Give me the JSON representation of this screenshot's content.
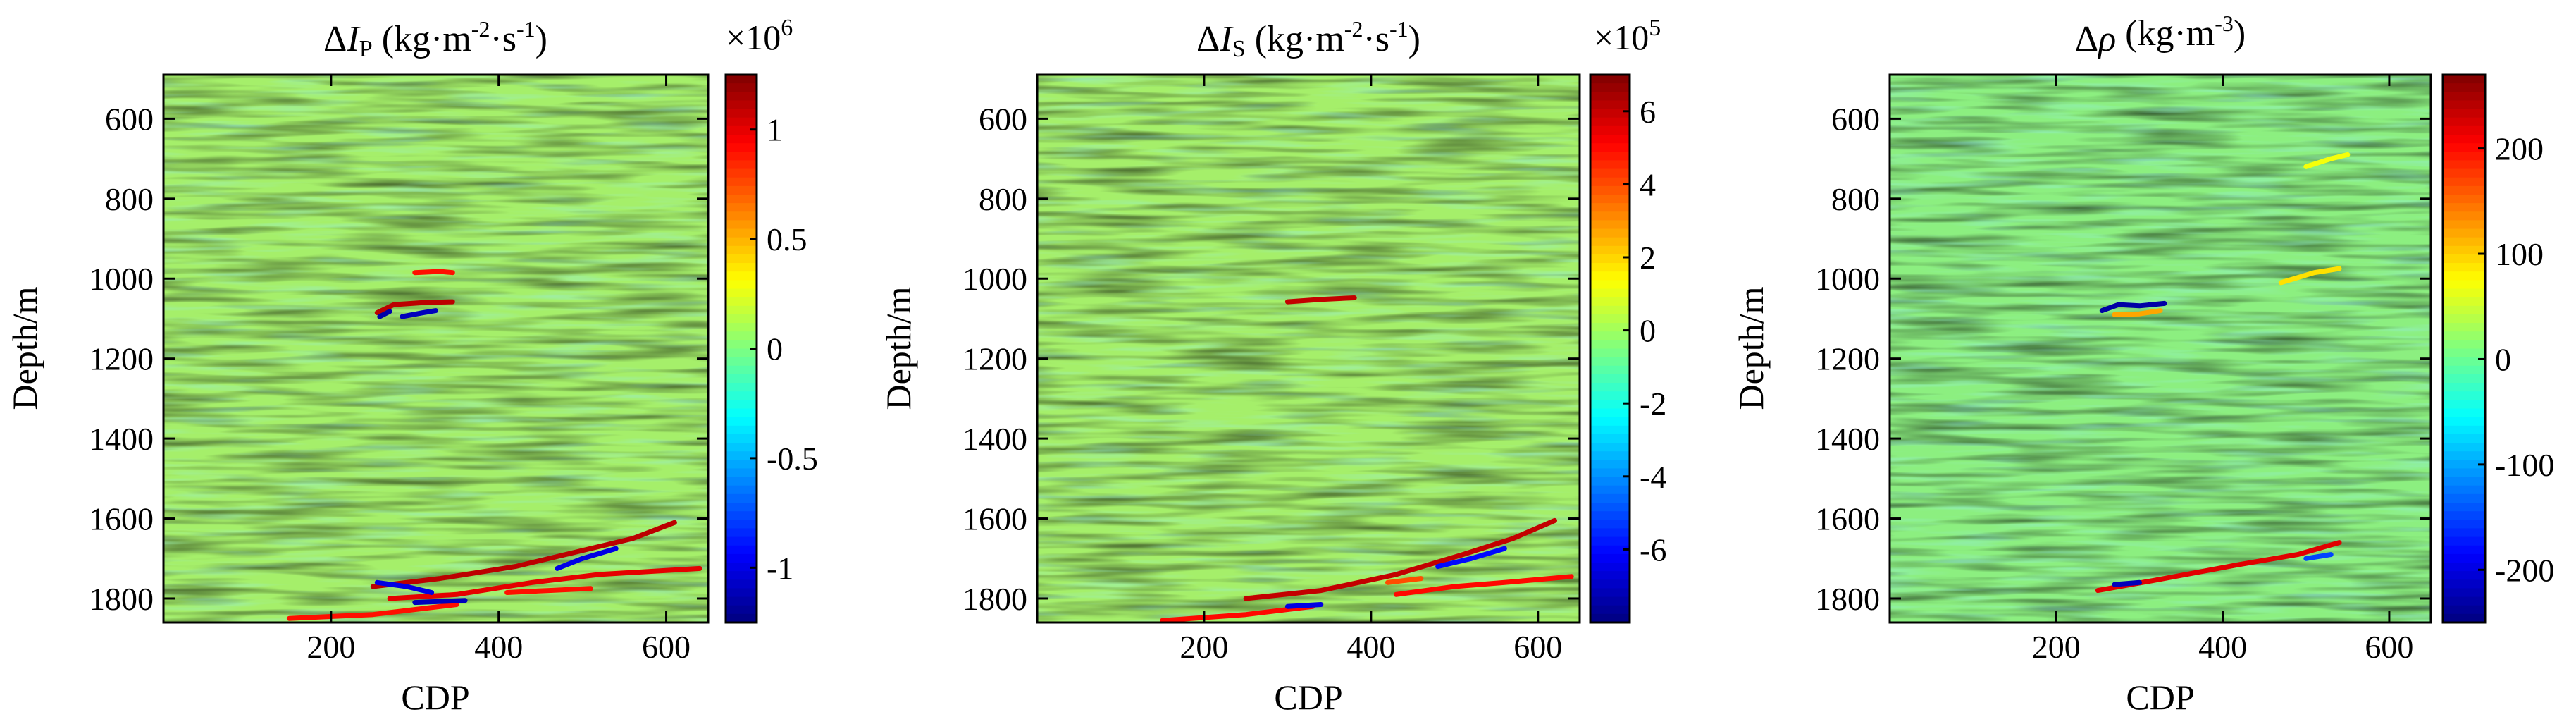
{
  "colors": {
    "colormap": [
      "#00007f",
      "#0000ff",
      "#007fff",
      "#00ffff",
      "#7fff7f",
      "#ffff00",
      "#ff7f00",
      "#ff0000",
      "#7f0000"
    ],
    "background_field": "#a5ef6a",
    "background_field_rho": "#8cef80"
  },
  "chart_data": [
    {
      "type": "heatmap",
      "title_prefix": "Δ",
      "title_symbol": "I",
      "title_sub": "P",
      "title_unit": " (kg·m",
      "title_sup1": "-2",
      "title_mid": "·s",
      "title_sup2": "-1",
      "title_end": ")",
      "xlabel": "CDP",
      "ylabel": "Depth/m",
      "xlim": [
        0,
        650
      ],
      "ylim": [
        1860,
        490
      ],
      "x_ticks": [
        200,
        400,
        600
      ],
      "x_tick_labels": [
        "200",
        "400",
        "600"
      ],
      "y_ticks": [
        600,
        800,
        1000,
        1200,
        1400,
        1600,
        1800
      ],
      "y_tick_labels": [
        "600",
        "800",
        "1000",
        "1200",
        "1400",
        "1600",
        "1800"
      ],
      "colorbar": {
        "multiplier_base": "×10",
        "multiplier_exp": "6",
        "range": [
          -1.25,
          1.25
        ],
        "ticks": [
          1,
          0.5,
          0,
          -0.5,
          -1
        ],
        "tick_labels": [
          "1",
          "0.5",
          "0",
          "-0.5",
          "-1"
        ]
      },
      "anomalies": [
        {
          "points": [
            [
              300,
              985
            ],
            [
              330,
              982
            ],
            [
              345,
              985
            ]
          ],
          "value": 0.9
        },
        {
          "points": [
            [
              255,
              1085
            ],
            [
              275,
              1065
            ],
            [
              310,
              1060
            ],
            [
              345,
              1058
            ]
          ],
          "value": 1.1
        },
        {
          "points": [
            [
              258,
              1095
            ],
            [
              270,
              1082
            ]
          ],
          "value": -1.15
        },
        {
          "points": [
            [
              285,
              1095
            ],
            [
              310,
              1085
            ],
            [
              325,
              1080
            ]
          ],
          "value": -1.1
        },
        {
          "points": [
            [
              250,
              1770
            ],
            [
              330,
              1750
            ],
            [
              420,
              1720
            ],
            [
              500,
              1680
            ],
            [
              560,
              1650
            ],
            [
              610,
              1610
            ]
          ],
          "value": 1.1
        },
        {
          "points": [
            [
              270,
              1800
            ],
            [
              350,
              1790
            ],
            [
              440,
              1760
            ],
            [
              520,
              1740
            ],
            [
              640,
              1725
            ]
          ],
          "value": 1.0
        },
        {
          "points": [
            [
              150,
              1850
            ],
            [
              250,
              1840
            ],
            [
              350,
              1815
            ]
          ],
          "value": 0.9
        },
        {
          "points": [
            [
              255,
              1760
            ],
            [
              290,
              1770
            ],
            [
              320,
              1785
            ]
          ],
          "value": -1.0
        },
        {
          "points": [
            [
              300,
              1810
            ],
            [
              360,
              1805
            ]
          ],
          "value": -1.1
        },
        {
          "points": [
            [
              470,
              1725
            ],
            [
              500,
              1700
            ],
            [
              540,
              1675
            ]
          ],
          "value": -1.0
        },
        {
          "points": [
            [
              410,
              1785
            ],
            [
              460,
              1780
            ],
            [
              510,
              1775
            ]
          ],
          "value": 0.9
        }
      ]
    },
    {
      "type": "heatmap",
      "title_prefix": "Δ",
      "title_symbol": "I",
      "title_sub": "S",
      "title_unit": " (kg·m",
      "title_sup1": "-2",
      "title_mid": "·s",
      "title_sup2": "-1",
      "title_end": ")",
      "xlabel": "CDP",
      "ylabel": "Depth/m",
      "xlim": [
        0,
        650
      ],
      "ylim": [
        1860,
        490
      ],
      "x_ticks": [
        200,
        400,
        600
      ],
      "x_tick_labels": [
        "200",
        "400",
        "600"
      ],
      "y_ticks": [
        600,
        800,
        1000,
        1200,
        1400,
        1600,
        1800
      ],
      "y_tick_labels": [
        "600",
        "800",
        "1000",
        "1200",
        "1400",
        "1600",
        "1800"
      ],
      "colorbar": {
        "multiplier_base": "×10",
        "multiplier_exp": "5",
        "range": [
          -8,
          7
        ],
        "ticks": [
          6,
          4,
          2,
          0,
          -2,
          -4,
          -6
        ],
        "tick_labels": [
          "6",
          "4",
          "2",
          "0",
          "-2",
          "-4",
          "-6"
        ]
      },
      "anomalies": [
        {
          "points": [
            [
              300,
              1058
            ],
            [
              340,
              1052
            ],
            [
              380,
              1048
            ]
          ],
          "value": 6
        },
        {
          "points": [
            [
              250,
              1800
            ],
            [
              340,
              1780
            ],
            [
              430,
              1740
            ],
            [
              510,
              1690
            ],
            [
              570,
              1650
            ],
            [
              620,
              1605
            ]
          ],
          "value": 6
        },
        {
          "points": [
            [
              150,
              1855
            ],
            [
              250,
              1840
            ],
            [
              330,
              1820
            ]
          ],
          "value": 5
        },
        {
          "points": [
            [
              430,
              1790
            ],
            [
              500,
              1770
            ],
            [
              560,
              1760
            ],
            [
              640,
              1745
            ]
          ],
          "value": 5
        },
        {
          "points": [
            [
              480,
              1720
            ],
            [
              520,
              1700
            ],
            [
              560,
              1675
            ]
          ],
          "value": -6
        },
        {
          "points": [
            [
              300,
              1820
            ],
            [
              340,
              1815
            ]
          ],
          "value": -6.5
        },
        {
          "points": [
            [
              420,
              1760
            ],
            [
              460,
              1750
            ]
          ],
          "value": 4
        }
      ]
    },
    {
      "type": "heatmap",
      "title_prefix": "Δ",
      "title_symbol": "ρ",
      "title_sub": "",
      "title_unit": " (kg·m",
      "title_sup1": "-3",
      "title_mid": "",
      "title_sup2": "",
      "title_end": ")",
      "xlabel": "CDP",
      "ylabel": "Depth/m",
      "xlim": [
        0,
        650
      ],
      "ylim": [
        1860,
        490
      ],
      "x_ticks": [
        200,
        400,
        600
      ],
      "x_tick_labels": [
        "200",
        "400",
        "600"
      ],
      "y_ticks": [
        600,
        800,
        1000,
        1200,
        1400,
        1600,
        1800
      ],
      "y_tick_labels": [
        "600",
        "800",
        "1000",
        "1200",
        "1400",
        "1600",
        "1800"
      ],
      "colorbar": {
        "multiplier_base": "",
        "multiplier_exp": "",
        "range": [
          -250,
          270
        ],
        "ticks": [
          200,
          100,
          0,
          -100,
          -200
        ],
        "tick_labels": [
          "200",
          "100",
          "0",
          "-100",
          "-200"
        ]
      },
      "anomalies": [
        {
          "points": [
            [
              255,
              1080
            ],
            [
              275,
              1065
            ],
            [
              300,
              1068
            ],
            [
              330,
              1062
            ]
          ],
          "value": -230
        },
        {
          "points": [
            [
              270,
              1090
            ],
            [
              300,
              1088
            ],
            [
              325,
              1080
            ]
          ],
          "value": 120
        },
        {
          "points": [
            [
              470,
              1010
            ],
            [
              510,
              985
            ],
            [
              540,
              975
            ]
          ],
          "value": 90
        },
        {
          "points": [
            [
              500,
              720
            ],
            [
              530,
              700
            ],
            [
              550,
              690
            ]
          ],
          "value": 70
        },
        {
          "points": [
            [
              250,
              1780
            ],
            [
              330,
              1750
            ],
            [
              420,
              1715
            ],
            [
              490,
              1690
            ],
            [
              540,
              1660
            ]
          ],
          "value": 220
        },
        {
          "points": [
            [
              270,
              1765
            ],
            [
              300,
              1760
            ]
          ],
          "value": -220
        },
        {
          "points": [
            [
              500,
              1700
            ],
            [
              530,
              1690
            ]
          ],
          "value": -150
        }
      ]
    }
  ]
}
